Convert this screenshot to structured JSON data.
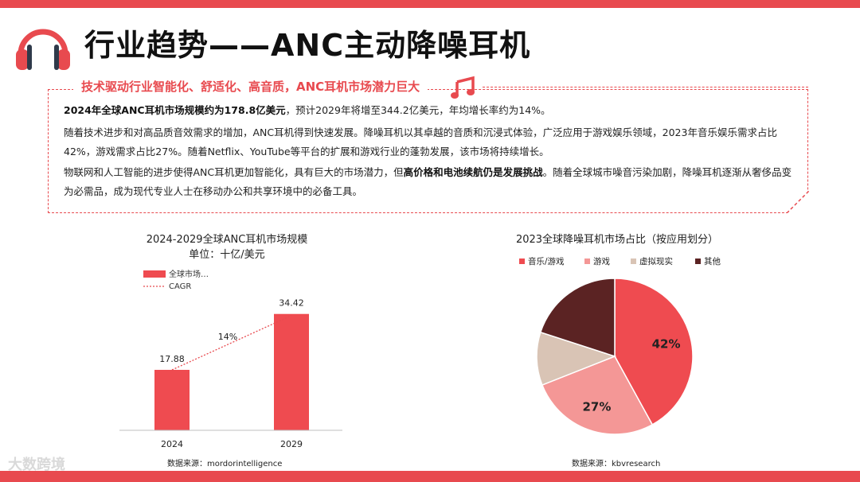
{
  "header": {
    "title": "行业趋势——ANC主动降噪耳机",
    "subtitle": "技术驱动行业智能化、舒适化、高音质，ANC耳机市场潜力巨大"
  },
  "summary": {
    "p1_bold": "2024年全球ANC耳机市场规模约为178.8亿美元",
    "p1_rest": "，预计2029年将增至344.2亿美元，年均增长率约为14%。",
    "p2": "随着技术进步和对高品质音效需求的增加，ANC耳机得到快速发展。降噪耳机以其卓越的音质和沉浸式体验，广泛应用于游戏娱乐领域，2023年音乐娱乐需求占比42%，游戏需求占比27%。随着Netflix、YouTube等平台的扩展和游戏行业的蓬勃发展，该市场将持续增长。",
    "p3_a": "物联网和人工智能的进步使得ANC耳机更加智能化，具有巨大的市场潜力，但",
    "p3_bold": "高价格和电池续航仍是发展挑战",
    "p3_b": "。随着全球城市噪音污染加剧，降噪耳机逐渐从奢侈品变为必需品，成为现代专业人士在移动办公和共享环境中的必备工具。"
  },
  "watermark": "大数跨境",
  "colors": {
    "accent": "#e84a4f",
    "music": "#ef4b50",
    "game": "#f49796",
    "vr": "#d9c4b5",
    "other": "#5b2323"
  },
  "chart_data": [
    {
      "type": "bar",
      "title": "2024-2029全球ANC耳机市场规模",
      "subtitle": "单位：十亿/美元",
      "categories": [
        "2024",
        "2029"
      ],
      "series": [
        {
          "name": "全球市场…",
          "values": [
            17.88,
            34.42
          ]
        }
      ],
      "cagr": {
        "name": "CAGR",
        "label": "14%"
      },
      "ylim": [
        0,
        40
      ],
      "grid": false,
      "legend": "top-left",
      "source": "数据来源：mordorintelligence"
    },
    {
      "type": "pie",
      "title": "2023全球降噪耳机市场占比（按应用划分）",
      "categories": [
        "音乐/游戏",
        "游戏",
        "虚拟现实",
        "其他"
      ],
      "values": [
        42,
        27,
        11,
        20
      ],
      "labels": [
        "42%",
        "27%",
        "",
        ""
      ],
      "legend": "top",
      "source": "数据来源：kbvresearch"
    }
  ]
}
